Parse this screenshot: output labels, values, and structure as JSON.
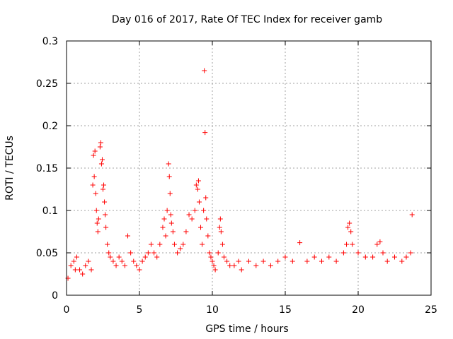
{
  "chart_data": {
    "type": "scatter",
    "title": "Day 016 of 2017, Rate Of TEC Index for receiver gamb",
    "xlabel": "GPS time / hours",
    "ylabel": "ROTI / TECUs",
    "xlim": [
      0,
      25
    ],
    "ylim": [
      0,
      0.3
    ],
    "x_ticks": [
      0,
      5,
      10,
      15,
      20,
      25
    ],
    "x_tick_labels": [
      "0",
      "5",
      "10",
      "15",
      "20",
      "25"
    ],
    "y_ticks": [
      0,
      0.05,
      0.1,
      0.15,
      0.2,
      0.25,
      0.3
    ],
    "y_tick_labels": [
      "0",
      "0.05",
      "0.1",
      "0.15",
      "0.2",
      "0.25",
      "0.3"
    ],
    "grid": true,
    "marker": "+",
    "color": "#ff0000",
    "series": [
      {
        "name": "ROTI",
        "x": [
          0.1,
          0.3,
          0.5,
          0.6,
          0.7,
          0.9,
          1.1,
          1.3,
          1.5,
          1.7,
          1.8,
          1.85,
          1.9,
          1.95,
          2.0,
          2.05,
          2.1,
          2.15,
          2.2,
          2.3,
          2.35,
          2.4,
          2.45,
          2.5,
          2.55,
          2.6,
          2.65,
          2.7,
          2.8,
          2.9,
          3.0,
          3.2,
          3.4,
          3.6,
          3.8,
          4.0,
          4.2,
          4.4,
          4.6,
          4.8,
          5.0,
          5.2,
          5.4,
          5.6,
          5.8,
          6.0,
          6.2,
          6.4,
          6.6,
          6.7,
          6.8,
          6.9,
          7.0,
          7.05,
          7.1,
          7.15,
          7.2,
          7.3,
          7.4,
          7.6,
          7.8,
          8.0,
          8.2,
          8.4,
          8.6,
          8.8,
          8.9,
          9.0,
          9.05,
          9.1,
          9.2,
          9.3,
          9.4,
          9.45,
          9.5,
          9.55,
          9.6,
          9.7,
          9.8,
          9.9,
          10.0,
          10.1,
          10.2,
          10.4,
          10.5,
          10.55,
          10.6,
          10.7,
          10.8,
          11.0,
          11.2,
          11.5,
          11.8,
          12.0,
          12.5,
          13.0,
          13.5,
          14.0,
          14.5,
          15.0,
          15.5,
          16.0,
          16.5,
          17.0,
          17.5,
          18.0,
          18.5,
          19.0,
          19.2,
          19.3,
          19.4,
          19.5,
          19.6,
          20.0,
          20.5,
          21.0,
          21.3,
          21.5,
          21.7,
          22.0,
          22.5,
          23.0,
          23.3,
          23.6,
          23.7
        ],
        "y": [
          0.02,
          0.035,
          0.04,
          0.03,
          0.045,
          0.03,
          0.025,
          0.035,
          0.04,
          0.03,
          0.13,
          0.165,
          0.14,
          0.17,
          0.12,
          0.1,
          0.085,
          0.075,
          0.09,
          0.175,
          0.18,
          0.155,
          0.16,
          0.125,
          0.13,
          0.11,
          0.095,
          0.08,
          0.06,
          0.05,
          0.045,
          0.04,
          0.035,
          0.045,
          0.04,
          0.035,
          0.07,
          0.05,
          0.04,
          0.035,
          0.03,
          0.04,
          0.045,
          0.05,
          0.06,
          0.05,
          0.045,
          0.06,
          0.08,
          0.09,
          0.07,
          0.1,
          0.155,
          0.14,
          0.12,
          0.095,
          0.085,
          0.075,
          0.06,
          0.05,
          0.055,
          0.06,
          0.075,
          0.095,
          0.09,
          0.1,
          0.13,
          0.125,
          0.135,
          0.11,
          0.08,
          0.06,
          0.1,
          0.265,
          0.192,
          0.115,
          0.09,
          0.07,
          0.05,
          0.045,
          0.04,
          0.035,
          0.03,
          0.05,
          0.08,
          0.09,
          0.075,
          0.06,
          0.045,
          0.04,
          0.035,
          0.035,
          0.04,
          0.03,
          0.04,
          0.035,
          0.04,
          0.035,
          0.04,
          0.045,
          0.04,
          0.062,
          0.04,
          0.045,
          0.04,
          0.045,
          0.04,
          0.05,
          0.06,
          0.08,
          0.085,
          0.075,
          0.06,
          0.05,
          0.045,
          0.045,
          0.06,
          0.063,
          0.05,
          0.04,
          0.045,
          0.04,
          0.045,
          0.05,
          0.095
        ]
      }
    ]
  }
}
